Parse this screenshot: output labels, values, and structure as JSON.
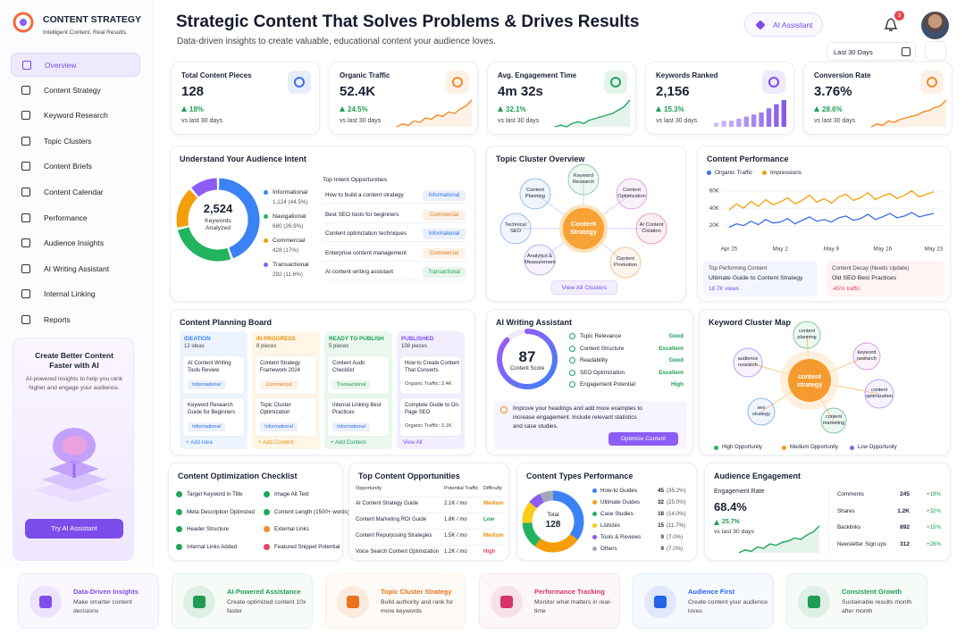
{
  "brand": {
    "title": "CONTENT STRATEGY",
    "subtitle": "Intelligent Content. Real Results."
  },
  "nav": [
    "Overview",
    "Content Strategy",
    "Keyword Research",
    "Topic Clusters",
    "Content Briefs",
    "Content Calendar",
    "Performance",
    "Audience Insights",
    "AI Writing Assistant",
    "Internal Linking",
    "Reports"
  ],
  "promo": {
    "title": "Create Better Content Faster with AI",
    "text": "AI-powered insights to help you rank higher and engage your audience.",
    "button": "Try AI Assistant"
  },
  "header": {
    "title": "Strategic Content That Solves Problems & Drives Results",
    "subtitle": "Data-driven insights to create valuable, educational content your audience loves.",
    "ai_button": "AI Assistant",
    "notifications": "3",
    "period": "Last 30 Days"
  },
  "kpis": [
    {
      "label": "Total Content Pieces",
      "value": "128",
      "change": "18%",
      "note": "vs last 30 days",
      "color": "#3b6fe0"
    },
    {
      "label": "Organic Traffic",
      "value": "52.4K",
      "change": "24.5%",
      "note": "vs last 30 days",
      "color": "#f08c2a",
      "spark": [
        3,
        4,
        3.5,
        5,
        4.5,
        6,
        5.5,
        7,
        6.5,
        8,
        7.5,
        9,
        10,
        12
      ]
    },
    {
      "label": "Avg. Engagement Time",
      "value": "4m 32s",
      "change": "32.1%",
      "note": "vs last 30 days",
      "color": "#22a55a",
      "spark": [
        3,
        3.5,
        3,
        4,
        4.5,
        4,
        5,
        5.5,
        6,
        6.5,
        7,
        8,
        9,
        11
      ]
    },
    {
      "label": "Keywords Ranked",
      "value": "2,156",
      "change": "15.3%",
      "note": "vs last 30 days",
      "color": "#7c4dea",
      "spark": [
        2,
        3,
        3,
        4,
        5,
        6,
        7,
        9,
        11,
        13
      ],
      "spark_bars": true
    },
    {
      "label": "Conversion Rate",
      "value": "3.76%",
      "change": "28.6%",
      "note": "vs last 30 days",
      "color": "#f08c2a",
      "spark": [
        3,
        4,
        3.5,
        5,
        4.5,
        5.5,
        6,
        6.5,
        7,
        8,
        8.5,
        9.5,
        10,
        12
      ]
    }
  ],
  "audience_intent": {
    "title": "Understand Your Audience Intent",
    "total": "2,524",
    "total_label": "Keywords Analyzed",
    "segments": [
      {
        "name": "Informational",
        "value": 1124,
        "label": "1,124 (44.5%)",
        "color": "#3b82f6"
      },
      {
        "name": "Navigational",
        "value": 680,
        "label": "680 (26.9%)",
        "color": "#22b35e"
      },
      {
        "name": "Commercial",
        "value": 428,
        "label": "428 (17%)",
        "color": "#f59e0b"
      },
      {
        "name": "Transactional",
        "value": 292,
        "label": "292 (11.6%)",
        "color": "#8b5cf6"
      }
    ],
    "opportunities_title": "Top Intent Opportunities",
    "opportunities": [
      {
        "text": "How to build a content strategy",
        "tag": "Informational",
        "color": "#2f6fe0"
      },
      {
        "text": "Best SEO tools for beginners",
        "tag": "Commercial",
        "color": "#e07b12"
      },
      {
        "text": "Content optimization techniques",
        "tag": "Informational",
        "color": "#2f6fe0"
      },
      {
        "text": "Enterprise content management",
        "tag": "Commercial",
        "color": "#e07b12"
      },
      {
        "text": "AI content writing assistant",
        "tag": "Transactional",
        "color": "#1f9d55"
      }
    ]
  },
  "topic_cluster": {
    "title": "Topic Cluster Overview",
    "center": "Content Strategy",
    "nodes": [
      {
        "label": "Keyword Research",
        "color": "#22a55a"
      },
      {
        "label": "Content Optimization",
        "color": "#c05ac9"
      },
      {
        "label": "AI Content Creation",
        "color": "#e0455f"
      },
      {
        "label": "Content Promotion",
        "color": "#f08c2a"
      },
      {
        "label": "Analytics & Measurement",
        "color": "#8b5cf6"
      },
      {
        "label": "Technical SEO",
        "color": "#3b82f6"
      },
      {
        "label": "Content Planning",
        "color": "#3b82f6"
      }
    ],
    "button": "View All Clusters"
  },
  "content_performance": {
    "title": "Content Performance",
    "ylim": [
      0,
      70000
    ],
    "yticks": [
      {
        "value": 20000,
        "label": "20K"
      },
      {
        "value": 40000,
        "label": "40K"
      },
      {
        "value": 60000,
        "label": "60K"
      }
    ],
    "categories": [
      "Apr 25",
      null,
      null,
      null,
      null,
      null,
      null,
      "May 2",
      null,
      null,
      null,
      null,
      null,
      null,
      "May 9",
      null,
      null,
      null,
      null,
      null,
      null,
      "May 16",
      null,
      null,
      null,
      null,
      null,
      null,
      "May 23"
    ],
    "series": [
      {
        "name": "Organic Traffic",
        "color": "#3b6fe0",
        "values": [
          18000,
          22000,
          20000,
          25000,
          21000,
          27000,
          23000,
          24000,
          28000,
          22000,
          26000,
          30000,
          25000,
          27000,
          24000,
          29000,
          31000,
          26000,
          28000,
          33000,
          27000,
          30000,
          34000,
          29000,
          31000,
          35000,
          30000,
          32000,
          34000
        ]
      },
      {
        "name": "Impressions",
        "color": "#f59e0b",
        "values": [
          38000,
          45000,
          40000,
          48000,
          42000,
          50000,
          44000,
          47000,
          52000,
          45000,
          49000,
          55000,
          47000,
          51000,
          46000,
          53000,
          56000,
          49000,
          52000,
          58000,
          50000,
          54000,
          57000,
          51000,
          55000,
          60000,
          53000,
          56000,
          59000
        ]
      }
    ],
    "top": {
      "title": "Top Performing Content",
      "item": "Ultimate Guide to Content Strategy",
      "stat": "18.7K views"
    },
    "decay": {
      "title": "Content Decay (Needs Update)",
      "item": "Old SEO Best Practices",
      "stat": "-45% traffic"
    }
  },
  "planning_board": {
    "title": "Content Planning Board",
    "columns": [
      {
        "name": "IDEATION",
        "count": "12 ideas",
        "color": "#3b82f6",
        "bg": "#eef4ff",
        "cards": [
          {
            "title": "AI Content Writing Tools Review",
            "tag": "Informational",
            "color": "#2f6fe0"
          },
          {
            "title": "Keyword Research Guide for Beginners",
            "tag": "Informational",
            "color": "#2f6fe0"
          }
        ],
        "footer": "+ Add Idea"
      },
      {
        "name": "IN PROGRESS",
        "count": "8 pieces",
        "color": "#e8900c",
        "bg": "#fff6e6",
        "cards": [
          {
            "title": "Content Strategy Framework 2024",
            "tag": "Commercial",
            "color": "#e07b12"
          },
          {
            "title": "Topic Cluster Optimization",
            "tag": "Informational",
            "color": "#2f6fe0"
          }
        ],
        "footer": "+ Add Content"
      },
      {
        "name": "READY TO PUBLISH",
        "count": "5 pieces",
        "color": "#1f9d55",
        "bg": "#eaf8ef",
        "cards": [
          {
            "title": "Content Audit Checklist",
            "tag": "Transactional",
            "color": "#1f9d55"
          },
          {
            "title": "Internal Linking Best Practices",
            "tag": "Informational",
            "color": "#2f6fe0"
          }
        ],
        "footer": "+ Add Content"
      },
      {
        "name": "PUBLISHED",
        "count": "108 pieces",
        "color": "#7c4dea",
        "bg": "#f3eefe",
        "cards": [
          {
            "title": "How to Create Content That Converts",
            "note": "Organic Traffic: 2.4K"
          },
          {
            "title": "Complete Guide to On-Page SEO",
            "note": "Organic Traffic: 3.1K"
          }
        ],
        "footer": "View All"
      }
    ]
  },
  "ai_writing": {
    "title": "AI Writing Assistant",
    "score": 87,
    "score_max": 100,
    "score_label": "Content Score",
    "metrics": [
      {
        "name": "Topic Relevance",
        "status": "Good"
      },
      {
        "name": "Content Structure",
        "status": "Excellent"
      },
      {
        "name": "Readability",
        "status": "Good"
      },
      {
        "name": "SEO Optimization",
        "status": "Excellent"
      },
      {
        "name": "Engagement Potential",
        "status": "High"
      }
    ],
    "tip": "Improve your headings and add more examples to increase engagement. Include relevant statistics and case studies.",
    "button": "Optimize Content"
  },
  "keyword_map": {
    "title": "Keyword Cluster Map",
    "center": "content strategy",
    "nodes": [
      {
        "label": "content planning",
        "color": "#22a55a"
      },
      {
        "label": "keyword research",
        "color": "#c05ac9"
      },
      {
        "label": "content optimization",
        "color": "#8b5cf6"
      },
      {
        "label": "content marketing",
        "color": "#22a55a"
      },
      {
        "label": "seo strategy",
        "color": "#3b82f6"
      },
      {
        "label": "audience research",
        "color": "#8b5cf6"
      }
    ],
    "legend": [
      {
        "name": "High Opportunity",
        "color": "#22b35e"
      },
      {
        "name": "Medium Opportunity",
        "color": "#f59e0b"
      },
      {
        "name": "Low Opportunity",
        "color": "#8b5cf6"
      }
    ]
  },
  "checklist": {
    "title": "Content Optimization Checklist",
    "items": [
      {
        "text": "Target Keyword in Title",
        "color": "#22a55a"
      },
      {
        "text": "Image Alt Text",
        "color": "#22a55a"
      },
      {
        "text": "Meta Description Optimized",
        "color": "#22a55a"
      },
      {
        "text": "Content Length (1500+ words)",
        "color": "#22a55a"
      },
      {
        "text": "Header Structure",
        "color": "#22a55a"
      },
      {
        "text": "External Links",
        "color": "#f08c2a"
      },
      {
        "text": "Internal Links Added",
        "color": "#22a55a"
      },
      {
        "text": "Featured Snippet Potential",
        "color": "#e0455f"
      }
    ]
  },
  "opportunities": {
    "title": "Top Content Opportunities",
    "columns": [
      "Opportunity",
      "Potential Traffic",
      "Difficulty"
    ],
    "rows": [
      {
        "name": "AI Content Strategy Guide",
        "traffic": "2.1K / mo",
        "difficulty": "Medium",
        "color": "#e8900c"
      },
      {
        "name": "Content Marketing ROI Guide",
        "traffic": "1.8K / mo",
        "difficulty": "Low",
        "color": "#1f9d55"
      },
      {
        "name": "Content Repurposing Strategies",
        "traffic": "1.5K / mo",
        "difficulty": "Medium",
        "color": "#e8900c"
      },
      {
        "name": "Voice Search Content Optimization",
        "traffic": "1.2K / mo",
        "difficulty": "High",
        "color": "#e0455f"
      }
    ]
  },
  "content_types": {
    "title": "Content Types Performance",
    "total_label": "Total",
    "total": "128",
    "items": [
      {
        "name": "How-to Guides",
        "value": 45,
        "share": "(35.2%)",
        "color": "#3b82f6"
      },
      {
        "name": "Ultimate Guides",
        "value": 32,
        "share": "(25.0%)",
        "color": "#f59e0b"
      },
      {
        "name": "Case Studies",
        "value": 18,
        "share": "(14.0%)",
        "color": "#22b35e"
      },
      {
        "name": "Listicles",
        "value": 15,
        "share": "(11.7%)",
        "color": "#facc15"
      },
      {
        "name": "Tools & Reviews",
        "value": 9,
        "share": "(7.0%)",
        "color": "#8b5cf6"
      },
      {
        "name": "Others",
        "value": 9,
        "share": "(7.0%)",
        "color": "#a3a8b8"
      }
    ]
  },
  "engagement": {
    "title": "Audience Engagement",
    "label": "Engagement Rate",
    "value": "68.4%",
    "change": "25.7%",
    "note": "vs last 30 days",
    "spark": [
      3,
      4,
      3.5,
      5,
      4.5,
      6,
      5.5,
      6.5,
      7,
      8,
      7.5,
      9,
      10,
      12
    ],
    "color": "#22a55a",
    "rows": [
      {
        "name": "Comments",
        "value": "245",
        "change": "+18%"
      },
      {
        "name": "Shares",
        "value": "1.2K",
        "change": "+32%"
      },
      {
        "name": "Backlinks",
        "value": "892",
        "change": "+15%"
      },
      {
        "name": "Newsletter Sign ups",
        "value": "312",
        "change": "+28%"
      }
    ]
  },
  "features": [
    {
      "title": "Data-Driven Insights",
      "text": "Make smarter content decisions",
      "color": "#7c4dea"
    },
    {
      "title": "AI-Powered Assistance",
      "text": "Create optimized content 10x faster",
      "color": "#1f9d55"
    },
    {
      "title": "Topic Cluster Strategy",
      "text": "Build authority and rank for more keywords",
      "color": "#e8731c"
    },
    {
      "title": "Performance Tracking",
      "text": "Monitor what matters in real-time",
      "color": "#d6336c"
    },
    {
      "title": "Audience First",
      "text": "Create content your audience loves",
      "color": "#2563eb"
    },
    {
      "title": "Consistent Growth",
      "text": "Sustainable results month after month",
      "color": "#1f9d55"
    }
  ]
}
